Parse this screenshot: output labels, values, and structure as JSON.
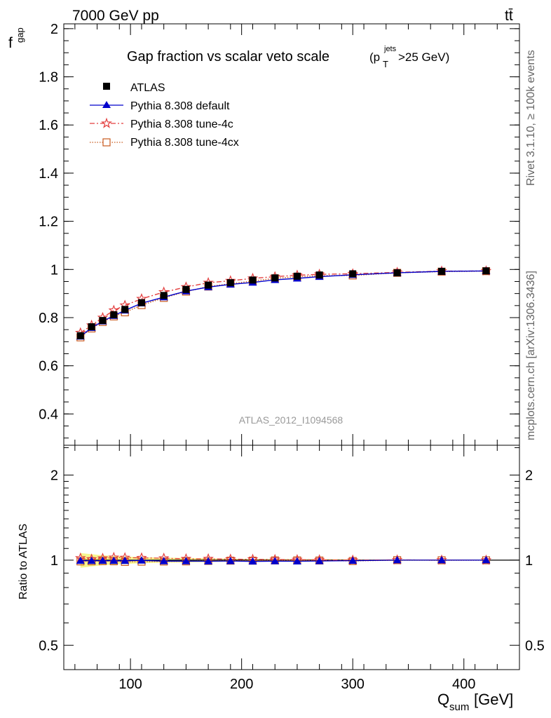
{
  "header": {
    "energy_label": "7000 GeV pp",
    "process_label": "tt̄"
  },
  "side_labels": {
    "rivet": "Rivet 3.1.10, ≥ 100k events",
    "mcplots": "mcplots.cern.ch [arXiv:1306.3436]"
  },
  "watermark": "ATLAS_2012_I1094568",
  "chart_data": [
    {
      "type": "line",
      "title_main": "Gap fraction vs scalar veto scale",
      "title_cut_prefix": "(p",
      "title_cut_sup": "jets",
      "title_cut_sub": "T",
      "title_cut_suffix": ">25 GeV)",
      "ylabel_main": "f",
      "ylabel_sub": "gap",
      "ylim": [
        0.27,
        2.02
      ],
      "xlim": [
        40,
        450
      ],
      "yticks": [
        "0.4",
        "0.6",
        "0.8",
        "1",
        "1.2",
        "1.4",
        "1.6",
        "1.8",
        "2"
      ],
      "x": [
        55,
        65,
        75,
        85,
        95,
        110,
        130,
        150,
        170,
        190,
        210,
        230,
        250,
        270,
        300,
        340,
        380,
        420
      ],
      "series": [
        {
          "name": "ATLAS",
          "color": "#000000",
          "marker": "filled-square",
          "values": [
            0.725,
            0.762,
            0.788,
            0.812,
            0.834,
            0.862,
            0.892,
            0.917,
            0.935,
            0.945,
            0.956,
            0.965,
            0.972,
            0.977,
            0.982,
            0.986,
            0.992,
            0.994
          ]
        },
        {
          "name": "Pythia 8.308 default",
          "color": "#0000cc",
          "marker": "filled-triangle",
          "dash": "",
          "values": [
            0.722,
            0.758,
            0.785,
            0.808,
            0.83,
            0.86,
            0.885,
            0.91,
            0.927,
            0.938,
            0.946,
            0.957,
            0.963,
            0.97,
            0.978,
            0.986,
            0.992,
            0.994
          ]
        },
        {
          "name": "Pythia 8.308 tune-4c",
          "color": "#e33f3f",
          "marker": "open-star",
          "dash": "7,3,2,3",
          "values": [
            0.737,
            0.768,
            0.8,
            0.83,
            0.851,
            0.878,
            0.906,
            0.927,
            0.945,
            0.953,
            0.963,
            0.97,
            0.976,
            0.98,
            0.982,
            0.988,
            0.993,
            0.994
          ]
        },
        {
          "name": "Pythia 8.308 tune-4cx",
          "color": "#c85a1e",
          "marker": "open-square",
          "dash": "1.5,2",
          "values": [
            0.718,
            0.755,
            0.782,
            0.805,
            0.822,
            0.852,
            0.882,
            0.908,
            0.929,
            0.941,
            0.952,
            0.963,
            0.97,
            0.974,
            0.975,
            0.986,
            0.991,
            0.993
          ]
        }
      ]
    },
    {
      "type": "line",
      "ylabel": "Ratio to ATLAS",
      "xlabel_main": "Q",
      "xlabel_sub": "sum",
      "xlabel_unit": " [GeV]",
      "ylim": [
        0.41,
        2.55
      ],
      "xlim": [
        40,
        450
      ],
      "yticks": [
        "0.5",
        "1",
        "2"
      ],
      "xticks": [
        "100",
        "200",
        "300",
        "400"
      ],
      "band_color": "#f5f57a",
      "x": [
        55,
        65,
        75,
        85,
        95,
        110,
        130,
        150,
        170,
        190,
        210,
        230,
        250,
        270,
        300,
        340,
        380,
        420
      ],
      "band_half_width": [
        0.06,
        0.05,
        0.04,
        0.035,
        0.03,
        0.025,
        0.02,
        0.018,
        0.015,
        0.012,
        0.01,
        0.01,
        0.008,
        0.008,
        0.006,
        0.005,
        0.004,
        0.003
      ],
      "series": [
        {
          "name": "Pythia 8.308 default",
          "color": "#0000cc",
          "marker": "filled-triangle",
          "dash": "",
          "values": [
            0.996,
            0.995,
            0.996,
            0.995,
            0.995,
            0.998,
            0.992,
            0.992,
            0.991,
            0.993,
            0.99,
            0.992,
            0.991,
            0.993,
            0.996,
            1.0,
            1.0,
            1.0
          ]
        },
        {
          "name": "Pythia 8.308 tune-4c",
          "color": "#e33f3f",
          "marker": "open-star",
          "dash": "7,3,2,3",
          "values": [
            1.017,
            1.008,
            1.015,
            1.022,
            1.02,
            1.019,
            1.016,
            1.011,
            1.011,
            1.008,
            1.007,
            1.005,
            1.004,
            1.003,
            1.0,
            1.002,
            1.001,
            1.0
          ]
        },
        {
          "name": "Pythia 8.308 tune-4cx",
          "color": "#c85a1e",
          "marker": "open-square",
          "dash": "1.5,2",
          "values": [
            0.99,
            0.991,
            0.992,
            0.991,
            0.986,
            0.988,
            0.989,
            0.99,
            0.994,
            0.996,
            0.996,
            0.998,
            0.998,
            0.997,
            0.993,
            1.0,
            0.999,
            0.999
          ]
        }
      ]
    }
  ]
}
